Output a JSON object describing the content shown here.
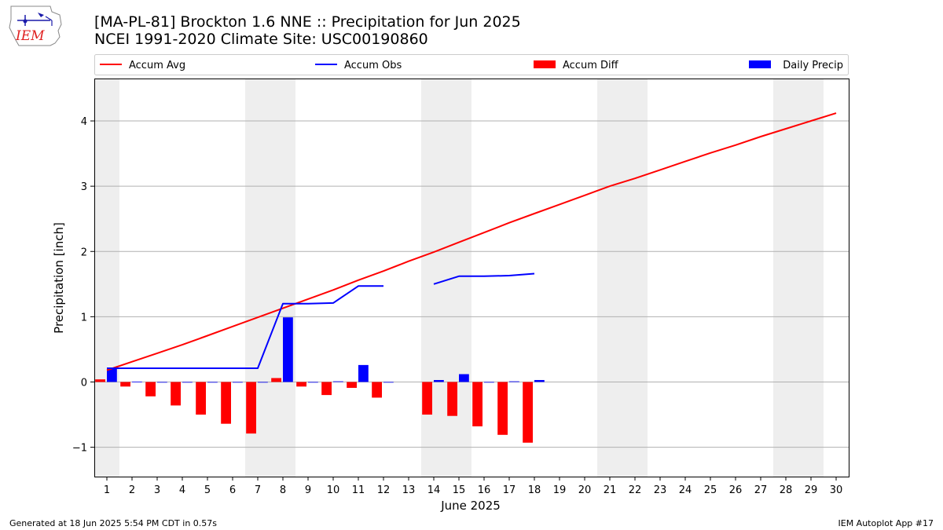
{
  "header": {
    "title_line1": "[MA-PL-81] Brockton 1.6 NNE :: Precipitation for Jun 2025",
    "title_line2": "NCEI 1991-2020 Climate Site: USC00190860",
    "logo_text": "IEM"
  },
  "footer": {
    "left": "Generated at 18 Jun 2025 5:54 PM CDT in 0.57s",
    "right": "IEM Autoplot App #17"
  },
  "colors": {
    "accum_avg": "#ff0000",
    "accum_obs": "#0000ff",
    "accum_diff": "#ff0000",
    "daily_precip": "#0000ff",
    "weekend_shade": "#eeeeee",
    "grid": "#b0b0b0"
  },
  "chart_data": {
    "type": "bar",
    "xlabel": "June 2025",
    "ylabel": "Precipitation [inch]",
    "xlim": [
      0.5,
      30.5
    ],
    "ylim": [
      -1.45,
      4.65
    ],
    "yticks": [
      -1,
      0,
      1,
      2,
      3,
      4
    ],
    "ytick_labels": [
      "−1",
      "0",
      "1",
      "2",
      "3",
      "4"
    ],
    "grid": "horizontal",
    "legend_position": "top",
    "days": [
      1,
      2,
      3,
      4,
      5,
      6,
      7,
      8,
      9,
      10,
      11,
      12,
      13,
      14,
      15,
      16,
      17,
      18,
      19,
      20,
      21,
      22,
      23,
      24,
      25,
      26,
      27,
      28,
      29,
      30
    ],
    "weekend_days": [
      1,
      7,
      8,
      14,
      15,
      21,
      22,
      28,
      29
    ],
    "legend": [
      {
        "label": "Accum Avg",
        "kind": "line",
        "color": "#ff0000"
      },
      {
        "label": "Accum Obs",
        "kind": "line",
        "color": "#0000ff"
      },
      {
        "label": "Accum Diff",
        "kind": "bar",
        "color": "#ff0000"
      },
      {
        "label": "Daily Precip",
        "kind": "bar",
        "color": "#0000ff"
      }
    ],
    "series": [
      {
        "name": "Accum Avg",
        "type": "line",
        "values": [
          0.18,
          0.31,
          0.44,
          0.57,
          0.71,
          0.85,
          0.99,
          1.13,
          1.27,
          1.41,
          1.56,
          1.7,
          1.85,
          1.99,
          2.14,
          2.29,
          2.44,
          2.58,
          2.72,
          2.86,
          3.0,
          3.12,
          3.25,
          3.38,
          3.51,
          3.63,
          3.76,
          3.88,
          4.0,
          4.12
        ]
      },
      {
        "name": "Accum Obs",
        "type": "line",
        "values": [
          0.21,
          0.21,
          0.21,
          0.21,
          0.21,
          0.21,
          0.21,
          1.2,
          1.2,
          1.21,
          1.47,
          1.47,
          null,
          1.5,
          1.62,
          1.62,
          1.63,
          1.66,
          null,
          null,
          null,
          null,
          null,
          null,
          null,
          null,
          null,
          null,
          null,
          null
        ]
      },
      {
        "name": "Accum Diff",
        "type": "bar",
        "values": [
          0.04,
          -0.07,
          -0.22,
          -0.36,
          -0.5,
          -0.64,
          -0.79,
          0.06,
          -0.07,
          -0.2,
          -0.09,
          -0.24,
          null,
          -0.5,
          -0.52,
          -0.68,
          -0.81,
          -0.93,
          null,
          null,
          null,
          null,
          null,
          null,
          null,
          null,
          null,
          null,
          null,
          null
        ]
      },
      {
        "name": "Daily Precip",
        "type": "bar",
        "values": [
          0.21,
          0.005,
          0.0,
          0.0,
          0.0,
          0.0,
          0.0,
          0.99,
          0.0,
          0.01,
          0.26,
          0.0,
          null,
          0.03,
          0.12,
          0.0,
          0.01,
          0.03,
          null,
          null,
          null,
          null,
          null,
          null,
          null,
          null,
          null,
          null,
          null,
          null
        ]
      }
    ]
  }
}
